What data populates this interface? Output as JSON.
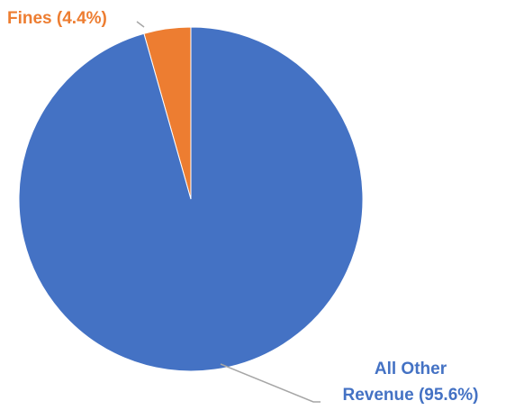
{
  "chart_data": {
    "type": "pie",
    "title": "",
    "start_angle_deg": 0,
    "direction": "counter-clockwise",
    "slices": [
      {
        "label": "Fines",
        "percent_text": "(4.4%)",
        "value": 4.4,
        "color": "#ED7D31",
        "label_lines": [
          "Fines (4.4%)"
        ]
      },
      {
        "label": "All Other Revenue",
        "percent_text": "(95.6%)",
        "value": 95.6,
        "color": "#4472C4",
        "label_lines": [
          "All Other",
          "Revenue (95.6%)"
        ]
      }
    ],
    "leader_line_color": "#A6A6A6",
    "legend": "none"
  }
}
